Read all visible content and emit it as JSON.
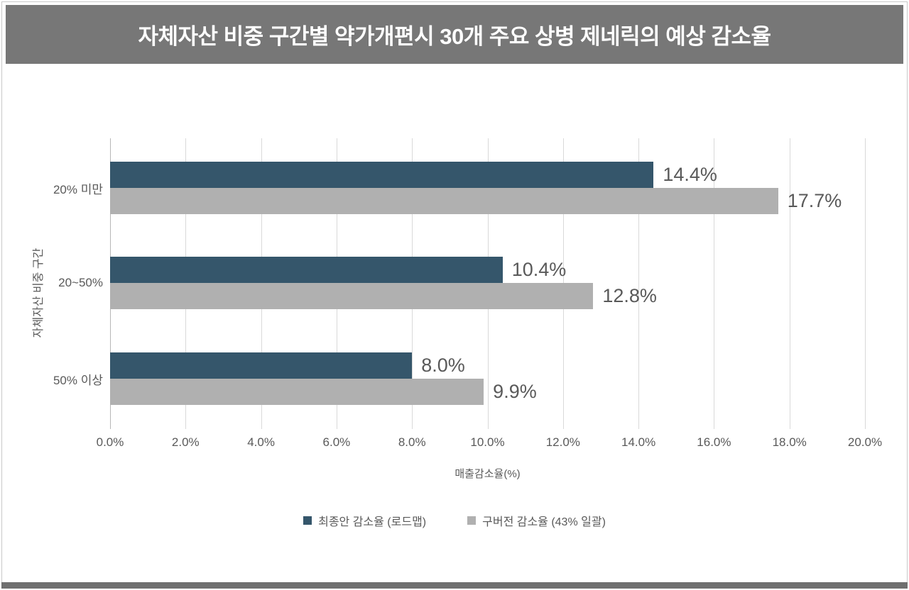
{
  "title": "자체자산 비중 구간별 약가개편시 30개 주요 상병 제네릭의 예상 감소율",
  "colors": {
    "banner_bg": "#777777",
    "banner_text": "#FFFFFF",
    "footer_bg": "#6F6F6F",
    "text": "#595959",
    "gridline": "#D9D9D9",
    "axis_line": "#B7B7B7",
    "frame_border": "#C9C9C9"
  },
  "chart_data": {
    "type": "bar",
    "orientation": "horizontal",
    "title": "자체자산 비중 구간별 약가개편시 30개 주요 상병 제네릭의 예상 감소율",
    "categories": [
      "20% 미만",
      "20~50%",
      "50% 이상"
    ],
    "series": [
      {
        "name": "최종안 감소율 (로드맵)",
        "color": "#35566B",
        "values": [
          14.4,
          10.4,
          8.0
        ],
        "value_labels": [
          "14.4%",
          "10.4%",
          "8.0%"
        ]
      },
      {
        "name": "구버전 감소율 (43% 일괄)",
        "color": "#B0B0B0",
        "values": [
          17.7,
          12.8,
          9.9
        ],
        "value_labels": [
          "17.7%",
          "12.8%",
          "9.9%"
        ]
      }
    ],
    "xlabel": "매출감소율(%)",
    "ylabel": "자체자산 비중 구간",
    "xlim": [
      0,
      20
    ],
    "x_ticks": [
      0,
      2,
      4,
      6,
      8,
      10,
      12,
      14,
      16,
      18,
      20
    ],
    "x_tick_labels": [
      "0.0%",
      "2.0%",
      "4.0%",
      "6.0%",
      "8.0%",
      "10.0%",
      "12.0%",
      "14.0%",
      "16.0%",
      "18.0%",
      "20.0%"
    ],
    "grid": "vertical-only",
    "legend_position": "bottom-center"
  }
}
